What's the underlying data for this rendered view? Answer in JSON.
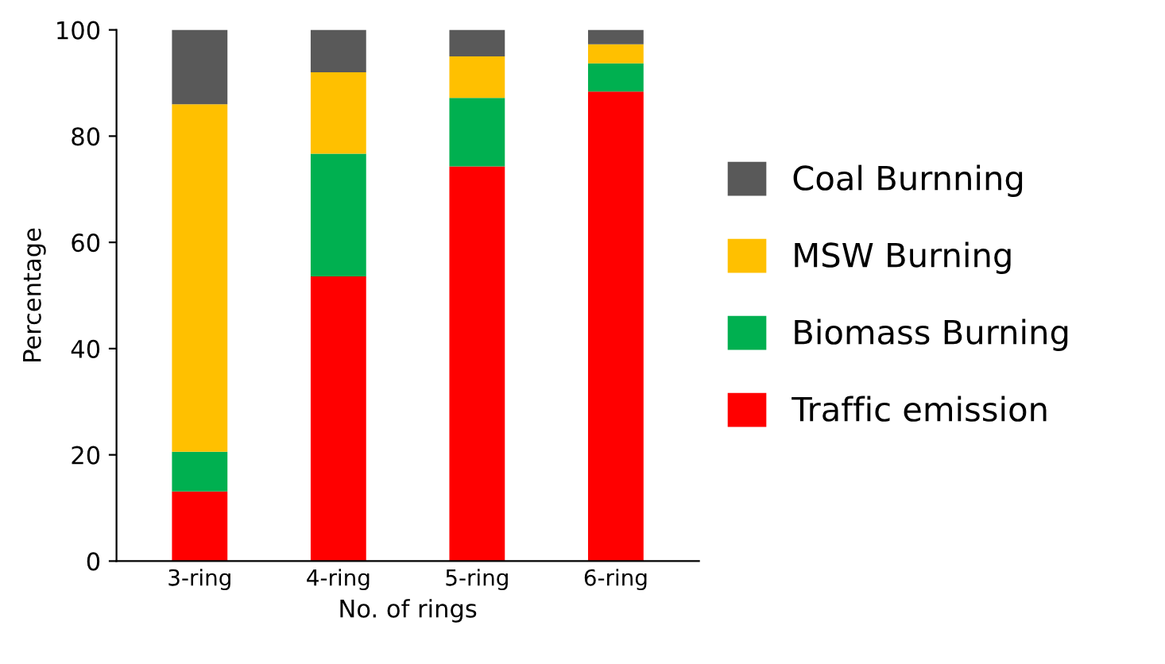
{
  "chart_data": {
    "type": "bar",
    "stacked": true,
    "xlabel": "No. of rings",
    "ylabel": "Percentage",
    "categories": [
      "3-ring",
      "4-ring",
      "5-ring",
      "6-ring"
    ],
    "series": [
      {
        "name": "Traffic emission",
        "color": "#ff0000",
        "values": [
          13.1,
          53.6,
          74.3,
          88.4
        ]
      },
      {
        "name": "Biomass Burning",
        "color": "#00b050",
        "values": [
          7.5,
          23.1,
          12.9,
          5.3
        ]
      },
      {
        "name": "MSW Burning",
        "color": "#ffc000",
        "values": [
          65.4,
          15.3,
          7.8,
          3.6
        ]
      },
      {
        "name": "Coal Burnning",
        "color": "#595959",
        "values": [
          14,
          8,
          5,
          2.7
        ]
      }
    ],
    "ylim": [
      0,
      100
    ],
    "yticks": [
      0,
      20,
      40,
      60,
      80,
      100
    ],
    "grid": false,
    "legend": "right"
  }
}
